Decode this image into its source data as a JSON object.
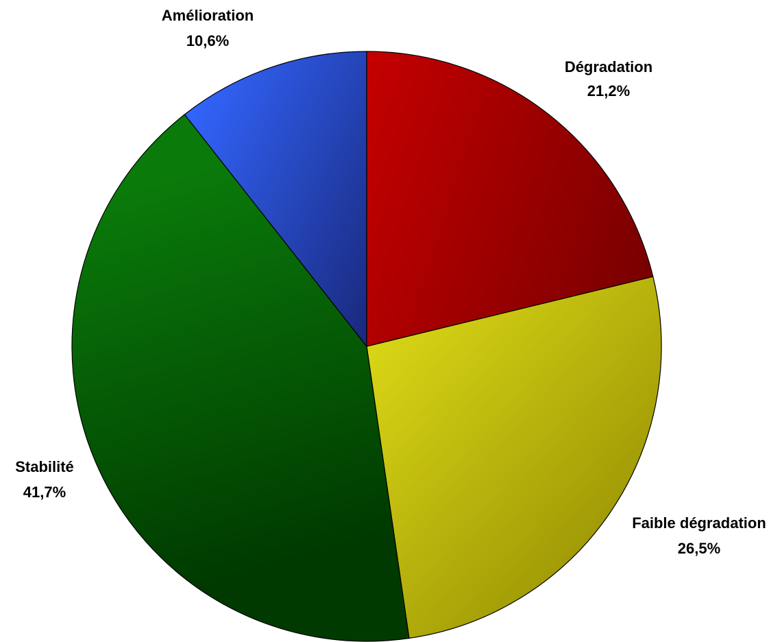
{
  "chart_data": {
    "type": "pie",
    "title": "",
    "slices": [
      {
        "name": "Dégradation",
        "value": 21.2,
        "label": "21,2%",
        "color": "#e00000",
        "color_dark": "#7a0000"
      },
      {
        "name": "Faible dégradation",
        "value": 26.5,
        "label": "26,5%",
        "color": "#ffff20",
        "color_dark": "#8a8200"
      },
      {
        "name": "Stabilité",
        "value": 41.7,
        "label": "41,7%",
        "color": "#0a7a0a",
        "color_dark": "#003a00"
      },
      {
        "name": "Amélioration",
        "value": 10.6,
        "label": "10,6%",
        "color": "#3366ff",
        "color_dark": "#1a2a80"
      }
    ],
    "start_angle": "12 o'clock",
    "direction": "clockwise",
    "legend": "none",
    "labels": "outside"
  }
}
